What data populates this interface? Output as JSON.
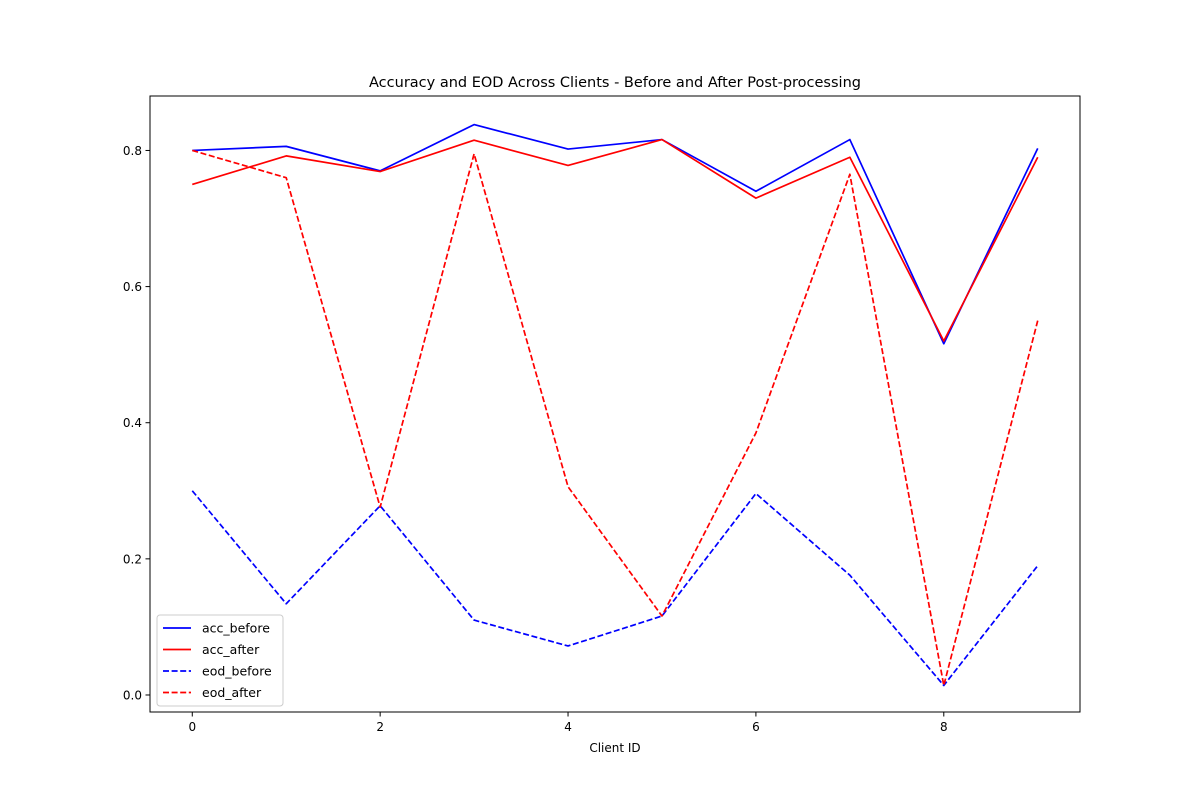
{
  "chart_data": {
    "type": "line",
    "title": "Accuracy and EOD Across Clients - Before and After Post-processing",
    "xlabel": "Client ID",
    "ylabel": "",
    "x": [
      0,
      1,
      2,
      3,
      4,
      5,
      6,
      7,
      8,
      9
    ],
    "xlim": [
      -0.45,
      9.45
    ],
    "ylim": [
      -0.025,
      0.88
    ],
    "xticks": [
      0,
      2,
      4,
      6,
      8
    ],
    "yticks": [
      0.0,
      0.2,
      0.4,
      0.6,
      0.8
    ],
    "xtick_labels": [
      "0",
      "2",
      "4",
      "6",
      "8"
    ],
    "ytick_labels": [
      "0.0",
      "0.2",
      "0.4",
      "0.6",
      "0.8"
    ],
    "grid": false,
    "legend_position": "lower-left",
    "series": [
      {
        "name": "acc_before",
        "color": "#0000ff",
        "linestyle": "solid",
        "values": [
          0.8,
          0.806,
          0.77,
          0.838,
          0.802,
          0.816,
          0.74,
          0.816,
          0.516,
          0.803
        ]
      },
      {
        "name": "acc_after",
        "color": "#ff0000",
        "linestyle": "solid",
        "values": [
          0.75,
          0.792,
          0.769,
          0.815,
          0.778,
          0.816,
          0.73,
          0.79,
          0.52,
          0.79
        ]
      },
      {
        "name": "eod_before",
        "color": "#0000ff",
        "linestyle": "dashed",
        "values": [
          0.3,
          0.134,
          0.278,
          0.11,
          0.072,
          0.116,
          0.296,
          0.176,
          0.014,
          0.19
        ]
      },
      {
        "name": "eod_after",
        "color": "#ff0000",
        "linestyle": "dashed",
        "values": [
          0.8,
          0.76,
          0.276,
          0.795,
          0.306,
          0.116,
          0.385,
          0.765,
          0.014,
          0.55
        ]
      }
    ]
  }
}
